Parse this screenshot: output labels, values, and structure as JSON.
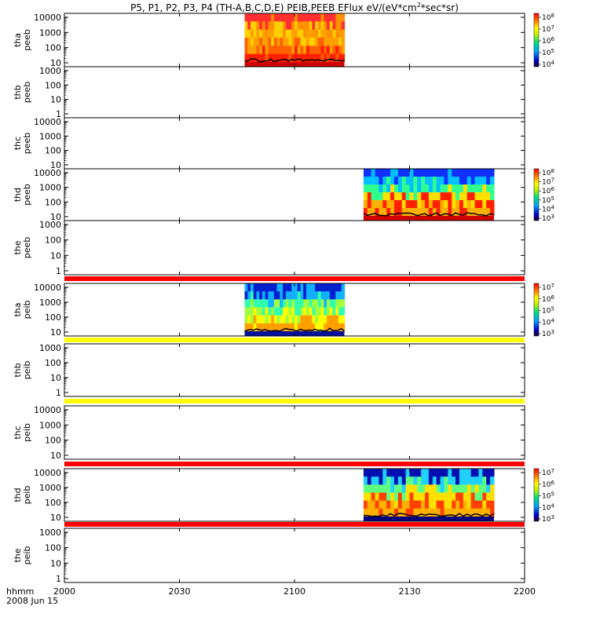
{
  "title_main": "P5, P1, P2, P3, P4 (TH-A,B,C,D,E) PEIB,PEEB EFlux eV/(eV*cm",
  "title_sup": "2",
  "title_end": "*sec*sr)",
  "footer": {
    "hhmm": "hhmm",
    "date": "2008 Jun 15"
  },
  "chart_data": {
    "type": "heatmap",
    "x_axis": {
      "range": [
        "2000",
        "2200"
      ],
      "ticks": [
        "2000",
        "2030",
        "2100",
        "2130",
        "2200"
      ]
    },
    "panels": [
      {
        "label": [
          "tha",
          "peeb"
        ],
        "yticks": [
          "10000",
          "1000",
          "100",
          "10"
        ],
        "data_span": [
          "2047",
          "2113"
        ],
        "colorbar": [
          "10^8",
          "10^7",
          "10^6",
          "10^5",
          "10^4"
        ],
        "scheme": "peeb"
      },
      {
        "label": [
          "thb",
          "peeb"
        ],
        "yticks": [
          "1000",
          "100",
          "10",
          "1"
        ]
      },
      {
        "label": [
          "thc",
          "peeb"
        ],
        "yticks": [
          "10000",
          "1000",
          "100",
          "10"
        ]
      },
      {
        "label": [
          "thd",
          "peeb"
        ],
        "yticks": [
          "10000",
          "1000",
          "100",
          "10"
        ],
        "data_span": [
          "2118",
          "2152"
        ],
        "colorbar": [
          "10^8",
          "10^7",
          "10^6",
          "10^5",
          "10^4",
          "10^3"
        ],
        "scheme": "peebd"
      },
      {
        "label": [
          "the",
          "peeb"
        ],
        "yticks": [
          "1000",
          "100",
          "10",
          "1"
        ]
      },
      {
        "label": [
          "tha",
          "peib"
        ],
        "yticks": [
          "10000",
          "1000",
          "100",
          "10"
        ],
        "data_span": [
          "2047",
          "2113"
        ],
        "colorbar": [
          "10^7",
          "10^6",
          "10^5",
          "10^4",
          "10^3"
        ],
        "scheme": "peib"
      },
      {
        "label": [
          "thb",
          "peib"
        ],
        "yticks": [
          "1000",
          "100",
          "10",
          "1"
        ]
      },
      {
        "label": [
          "thc",
          "peib"
        ],
        "yticks": [
          "10000",
          "1000",
          "100",
          "10"
        ]
      },
      {
        "label": [
          "thd",
          "peib"
        ],
        "yticks": [
          "10000",
          "1000",
          "100",
          "10"
        ],
        "data_span": [
          "2118",
          "2152"
        ],
        "colorbar": [
          "10^7",
          "10^6",
          "10^5",
          "10^4",
          "10^3"
        ],
        "scheme": "peibd"
      },
      {
        "label": [
          "the",
          "peib"
        ],
        "yticks": [
          "1000",
          "100",
          "10",
          "1"
        ]
      }
    ],
    "flag_bars": [
      {
        "between_panels": [
          "the peeb",
          "tha peib"
        ],
        "color": "#ff0000"
      },
      {
        "between_panels": [
          "tha peib",
          "thb peib"
        ],
        "color": "#ffff00"
      },
      {
        "between_panels": [
          "thb peib",
          "thc peib"
        ],
        "color": "#ffff00"
      },
      {
        "between_panels": [
          "thc peib",
          "thd peib"
        ],
        "color": "#ff0000"
      },
      {
        "between_panels": [
          "thd peib",
          "the peib"
        ],
        "color": "#ff0000"
      }
    ]
  }
}
